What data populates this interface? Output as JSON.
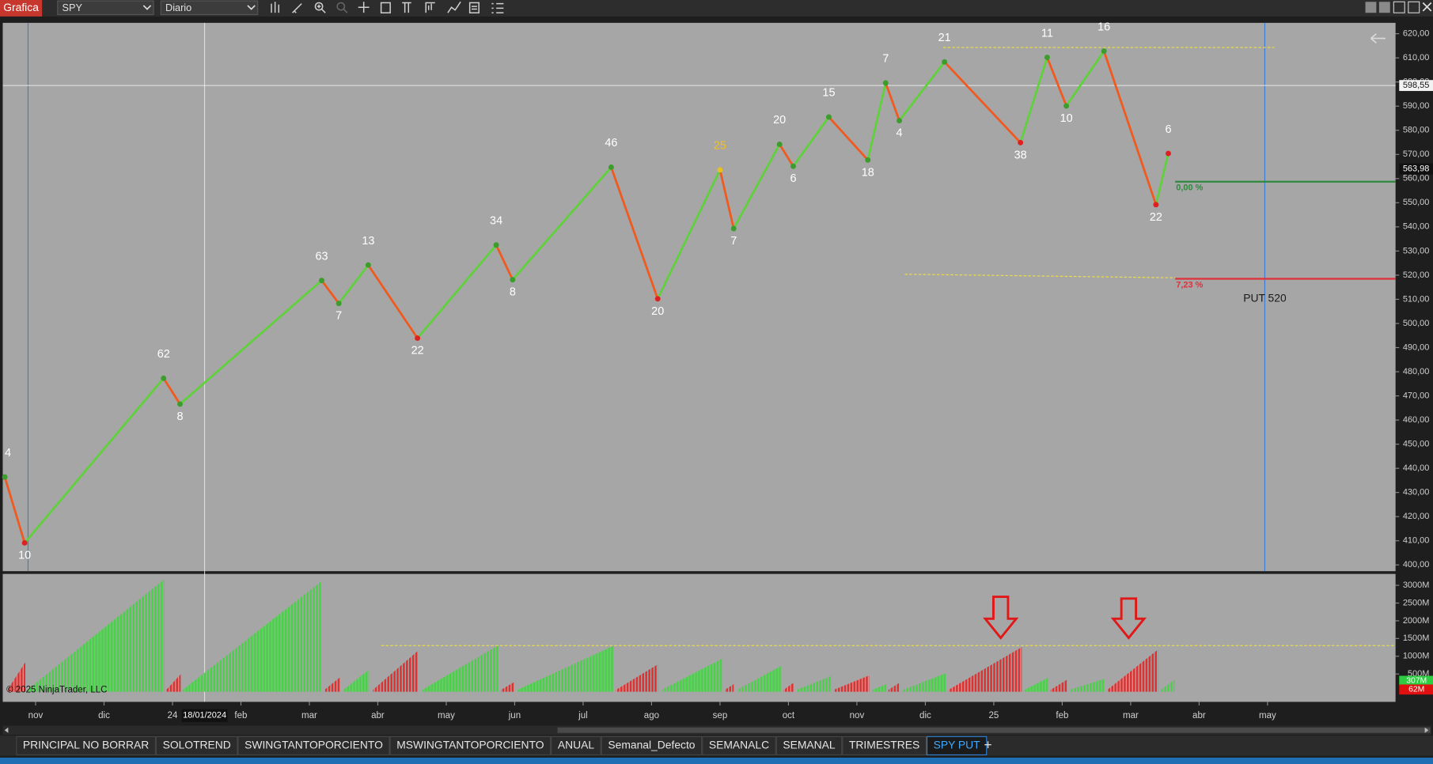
{
  "toolbar": {
    "title": "Grafica",
    "symbol": "SPY",
    "interval": "Diario"
  },
  "chart_data": {
    "type": "zigzag",
    "x": [
      -0.45,
      -0.16,
      1.87,
      2.11,
      4.18,
      4.43,
      4.86,
      5.58,
      6.73,
      6.97,
      8.41,
      9.09,
      10.0,
      10.2,
      10.87,
      11.07,
      11.59,
      12.16,
      12.42,
      12.62,
      13.28,
      14.39,
      14.78,
      15.06,
      15.61,
      16.37,
      16.55
    ],
    "values": [
      436.4,
      409.1,
      477.3,
      466.6,
      517.8,
      508.3,
      524.2,
      493.9,
      532.5,
      518.1,
      564.7,
      510.2,
      563.6,
      539.3,
      574.2,
      565.1,
      585.5,
      567.7,
      599.6,
      584.0,
      608.3,
      574.9,
      610.2,
      590.1,
      612.8,
      549.2,
      570.4
    ],
    "swing_labels": [
      "4",
      "10",
      "62",
      "8",
      "63",
      "7",
      "13",
      "22",
      "34",
      "8",
      "46",
      "20",
      "25",
      "7",
      "20",
      "6",
      "15",
      "18",
      "7",
      "4",
      "21",
      "38",
      "11",
      "10",
      "16",
      "22",
      "6"
    ],
    "marker_colors": [
      "#3c9c2c",
      "#e02020",
      "#3c9c2c",
      "#3c9c2c",
      "#3c9c2c",
      "#3c9c2c",
      "#3c9c2c",
      "#e02020",
      "#3c9c2c",
      "#3c9c2c",
      "#3c9c2c",
      "#e02020",
      "#e8c020",
      "#3c9c2c",
      "#3c9c2c",
      "#3c9c2c",
      "#3c9c2c",
      "#3c9c2c",
      "#3c9c2c",
      "#3c9c2c",
      "#3c9c2c",
      "#e02020",
      "#3c9c2c",
      "#3c9c2c",
      "#3c9c2c",
      "#e02020",
      "#e02020"
    ],
    "label_colors": [
      "#ffffff",
      "#ffffff",
      "#ffffff",
      "#ffffff",
      "#ffffff",
      "#ffffff",
      "#ffffff",
      "#ffffff",
      "#ffffff",
      "#ffffff",
      "#ffffff",
      "#ffffff",
      "#f0c020",
      "#ffffff",
      "#ffffff",
      "#ffffff",
      "#ffffff",
      "#ffffff",
      "#ffffff",
      "#ffffff",
      "#ffffff",
      "#ffffff",
      "#ffffff",
      "#ffffff",
      "#ffffff",
      "#ffffff",
      "#ffffff"
    ],
    "up_color": "#5fd13a",
    "down_color": "#f05a1e",
    "xlim": [
      -0.48,
      19.87
    ],
    "xticks": [
      {
        "value": 0,
        "label": "nov"
      },
      {
        "value": 1,
        "label": "dic"
      },
      {
        "value": 2,
        "label": "24"
      },
      {
        "value": 3,
        "label": "feb"
      },
      {
        "value": 4,
        "label": "mar"
      },
      {
        "value": 5,
        "label": "abr"
      },
      {
        "value": 6,
        "label": "may"
      },
      {
        "value": 7,
        "label": "jun"
      },
      {
        "value": 8,
        "label": "jul"
      },
      {
        "value": 9,
        "label": "ago"
      },
      {
        "value": 10,
        "label": "sep"
      },
      {
        "value": 11,
        "label": "oct"
      },
      {
        "value": 12,
        "label": "nov"
      },
      {
        "value": 13,
        "label": "dic"
      },
      {
        "value": 14,
        "label": "25"
      },
      {
        "value": 15,
        "label": "feb"
      },
      {
        "value": 16,
        "label": "mar"
      },
      {
        "value": 17,
        "label": "abr"
      },
      {
        "value": 18,
        "label": "may"
      }
    ],
    "ylim": [
      397.4,
      624.5
    ],
    "yticks": [
      {
        "value": 400,
        "label": "400,00"
      },
      {
        "value": 410,
        "label": "410,00"
      },
      {
        "value": 420,
        "label": "420,00"
      },
      {
        "value": 430,
        "label": "430,00"
      },
      {
        "value": 440,
        "label": "440,00"
      },
      {
        "value": 450,
        "label": "450,00"
      },
      {
        "value": 460,
        "label": "460,00"
      },
      {
        "value": 470,
        "label": "470,00"
      },
      {
        "value": 480,
        "label": "480,00"
      },
      {
        "value": 490,
        "label": "490,00"
      },
      {
        "value": 500,
        "label": "500,00"
      },
      {
        "value": 510,
        "label": "510,00"
      },
      {
        "value": 520,
        "label": "520,00"
      },
      {
        "value": 530,
        "label": "530,00"
      },
      {
        "value": 540,
        "label": "540,00"
      },
      {
        "value": 550,
        "label": "550,00"
      },
      {
        "value": 560,
        "label": "560,00"
      },
      {
        "value": 570,
        "label": "570,00"
      },
      {
        "value": 580,
        "label": "580,00"
      },
      {
        "value": 590,
        "label": "590,00"
      },
      {
        "value": 600,
        "label": "600,00"
      },
      {
        "value": 610,
        "label": "610,00"
      },
      {
        "value": 620,
        "label": "620,00"
      }
    ],
    "crosshair": {
      "x": 2.47,
      "x_label": "18/01/2024",
      "y": 598.55,
      "y_label": "598,55"
    },
    "last_price": {
      "value": 563.98,
      "label": "563,98"
    },
    "levels": [
      {
        "value": 558.7,
        "x0": 16.65,
        "color": "#2e8b3e",
        "label": "0,00 %"
      },
      {
        "value": 518.5,
        "x0": 16.65,
        "color": "#e0303a",
        "label": "7,23 %"
      }
    ],
    "vertical_lines": [
      {
        "x": -0.11,
        "color": "#3b7bd4"
      },
      {
        "x": 17.96,
        "color": "#3b7bd4"
      }
    ],
    "resistance": {
      "x0": 13.26,
      "x1": 18.1,
      "value": 614.3,
      "color": "#f0e040"
    },
    "trendline": {
      "x0": 12.7,
      "y0": 520.4,
      "x1": 16.65,
      "y1": 518.9,
      "color": "#f0e040"
    },
    "annotation": "PUT 520",
    "volume": {
      "ylim": [
        -80,
        3270
      ],
      "yticks": [
        {
          "value": 500,
          "label": "500M"
        },
        {
          "value": 1000,
          "label": "1000M"
        },
        {
          "value": 1500,
          "label": "1500M"
        },
        {
          "value": 2000,
          "label": "2000M"
        },
        {
          "value": 2500,
          "label": "2500M"
        },
        {
          "value": 3000,
          "label": "3000M"
        }
      ],
      "reference": 1300,
      "ramps": [
        {
          "x0": -0.41,
          "x1": -0.15,
          "value": 830,
          "color": "#e03030"
        },
        {
          "x0": -0.12,
          "x1": 1.88,
          "value": 3170,
          "color": "#44d444"
        },
        {
          "x0": 1.91,
          "x1": 2.12,
          "value": 490,
          "color": "#e03030"
        },
        {
          "x0": 2.15,
          "x1": 4.18,
          "value": 3120,
          "color": "#44d444"
        },
        {
          "x0": 4.22,
          "x1": 4.45,
          "value": 410,
          "color": "#e03030"
        },
        {
          "x0": 4.5,
          "x1": 4.87,
          "value": 620,
          "color": "#44d444"
        },
        {
          "x0": 4.93,
          "x1": 5.59,
          "value": 1160,
          "color": "#e03030"
        },
        {
          "x0": 5.65,
          "x1": 6.76,
          "value": 1310,
          "color": "#44d444"
        },
        {
          "x0": 6.8,
          "x1": 7.0,
          "value": 280,
          "color": "#e03030"
        },
        {
          "x0": 7.04,
          "x1": 8.44,
          "value": 1290,
          "color": "#44d444"
        },
        {
          "x0": 8.48,
          "x1": 9.09,
          "value": 770,
          "color": "#e03030"
        },
        {
          "x0": 9.15,
          "x1": 10.03,
          "value": 930,
          "color": "#44d444"
        },
        {
          "x0": 10.07,
          "x1": 10.2,
          "value": 210,
          "color": "#e03030"
        },
        {
          "x0": 10.25,
          "x1": 10.89,
          "value": 720,
          "color": "#44d444"
        },
        {
          "x0": 10.93,
          "x1": 11.08,
          "value": 260,
          "color": "#e03030"
        },
        {
          "x0": 11.12,
          "x1": 11.62,
          "value": 440,
          "color": "#44d444"
        },
        {
          "x0": 11.66,
          "x1": 12.18,
          "value": 460,
          "color": "#e03030"
        },
        {
          "x0": 12.23,
          "x1": 12.43,
          "value": 210,
          "color": "#44d444"
        },
        {
          "x0": 12.46,
          "x1": 12.63,
          "value": 260,
          "color": "#e03030"
        },
        {
          "x0": 12.67,
          "x1": 13.3,
          "value": 520,
          "color": "#44d444"
        },
        {
          "x0": 13.34,
          "x1": 14.41,
          "value": 1260,
          "color": "#e03030"
        },
        {
          "x0": 14.45,
          "x1": 14.79,
          "value": 390,
          "color": "#44d444"
        },
        {
          "x0": 14.83,
          "x1": 15.07,
          "value": 340,
          "color": "#e03030"
        },
        {
          "x0": 15.11,
          "x1": 15.61,
          "value": 360,
          "color": "#44d444"
        },
        {
          "x0": 15.66,
          "x1": 16.4,
          "value": 1190,
          "color": "#e03030"
        },
        {
          "x0": 16.44,
          "x1": 16.64,
          "value": 340,
          "color": "#44d444"
        }
      ],
      "tags": [
        {
          "value": 307,
          "label": "307M",
          "color": "#2ecc40"
        },
        {
          "value": 62,
          "label": "62M",
          "color": "#e01010"
        }
      ]
    }
  },
  "copyright": "© 2025 NinjaTrader, LLC",
  "tabs": {
    "items": [
      "PRINCIPAL NO BORRAR",
      "SOLOTREND",
      "SWINGTANTOPORCIENTO",
      "MSWINGTANTOPORCIENTO",
      "ANUAL",
      "Semanal_Defecto",
      "SEMANALC",
      "SEMANAL",
      "TRIMESTRES",
      "SPY PUT"
    ],
    "active": 9
  }
}
